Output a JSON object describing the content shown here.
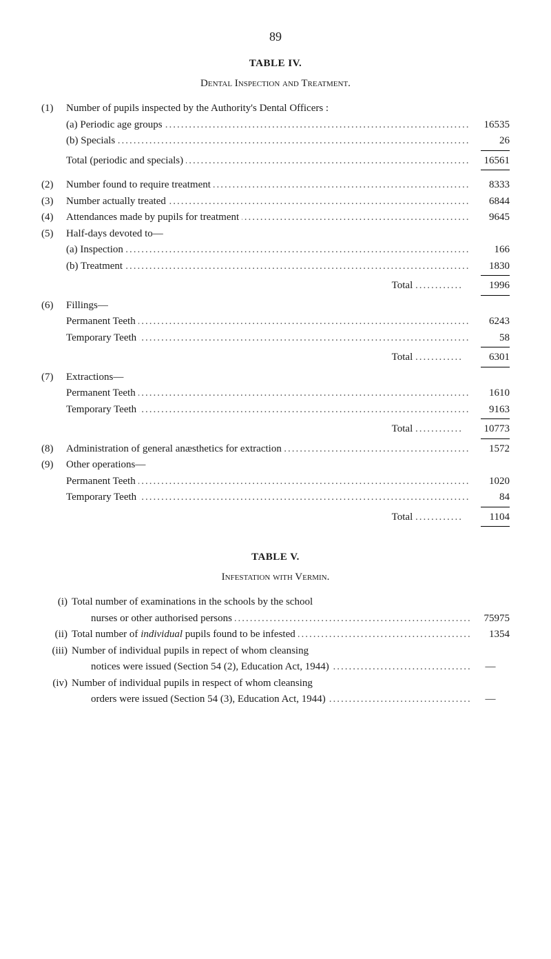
{
  "page_number": "89",
  "table_iv": {
    "title": "TABLE IV.",
    "subtitle": "Dental Inspection and Treatment.",
    "items": [
      {
        "num": "(1)",
        "label": "Number of pupils inspected by the Authority's Dental Officers :",
        "value": ""
      },
      {
        "num": "",
        "label": "(a) Periodic age groups",
        "value": "16535",
        "indent": true
      },
      {
        "num": "",
        "label": "(b) Specials",
        "value": "26",
        "indent": true
      },
      {
        "ruleAbove": true
      },
      {
        "num": "",
        "label": "Total (periodic and specials)",
        "value": "16561",
        "indent": true,
        "totalish": true
      },
      {
        "ruleAbove": true
      },
      {
        "spacer": true
      },
      {
        "num": "(2)",
        "label": "Number found to require treatment",
        "value": "8333"
      },
      {
        "num": "(3)",
        "label": "Number actually treated",
        "value": "6844"
      },
      {
        "num": "(4)",
        "label": "Attendances made by pupils for treatment",
        "value": "9645"
      },
      {
        "num": "(5)",
        "label": "Half-days devoted to—",
        "value": ""
      },
      {
        "num": "",
        "label": "(a) Inspection",
        "value": "166",
        "indent": true
      },
      {
        "num": "",
        "label": "(b) Treatment",
        "value": "1830",
        "indent": true
      },
      {
        "ruleAbove": true
      },
      {
        "num": "",
        "label": "Total",
        "value": "1996",
        "rightLabel": true
      },
      {
        "ruleAbove": true
      },
      {
        "num": "(6)",
        "label": "Fillings—",
        "value": ""
      },
      {
        "num": "",
        "label": "Permanent Teeth",
        "value": "6243",
        "indent": true
      },
      {
        "num": "",
        "label": "Temporary Teeth",
        "value": "58",
        "indent": true
      },
      {
        "ruleAbove": true
      },
      {
        "num": "",
        "label": "Total",
        "value": "6301",
        "rightLabel": true
      },
      {
        "ruleAbove": true
      },
      {
        "num": "(7)",
        "label": "Extractions—",
        "value": ""
      },
      {
        "num": "",
        "label": "Permanent Teeth",
        "value": "1610",
        "indent": true
      },
      {
        "num": "",
        "label": "Temporary Teeth",
        "value": "9163",
        "indent": true
      },
      {
        "ruleAbove": true
      },
      {
        "num": "",
        "label": "Total",
        "value": "10773",
        "rightLabel": true
      },
      {
        "ruleAbove": true
      },
      {
        "num": "(8)",
        "label": "Administration of general anæsthetics for extraction",
        "value": "1572"
      },
      {
        "num": "(9)",
        "label": "Other operations—",
        "value": ""
      },
      {
        "num": "",
        "label": "Permanent Teeth",
        "value": "1020",
        "indent": true
      },
      {
        "num": "",
        "label": "Temporary Teeth",
        "value": "84",
        "indent": true
      },
      {
        "ruleAbove": true
      },
      {
        "num": "",
        "label": "Total",
        "value": "1104",
        "rightLabel": true
      },
      {
        "ruleAbove": true
      }
    ]
  },
  "table_v": {
    "title": "TABLE V.",
    "subtitle": "Infestation with Vermin.",
    "items": [
      {
        "roman": "(i)",
        "lines": [
          "Total number of examinations in the schools by the school",
          "nurses or other authorised persons"
        ],
        "value": "75975"
      },
      {
        "roman": "(ii)",
        "lines": [
          "Total number of individual pupils found to be infested"
        ],
        "value": "1354",
        "italic_word": "individual"
      },
      {
        "roman": "(iii)",
        "lines": [
          "Number of individual pupils in repect of whom cleansing",
          "notices were issued (Section 54 (2), Education Act, 1944)"
        ],
        "value": "—"
      },
      {
        "roman": "(iv)",
        "lines": [
          "Number of individual pupils in respect of whom cleansing",
          "orders were issued (Section 54 (3), Education Act, 1944)"
        ],
        "value": "—"
      }
    ]
  }
}
